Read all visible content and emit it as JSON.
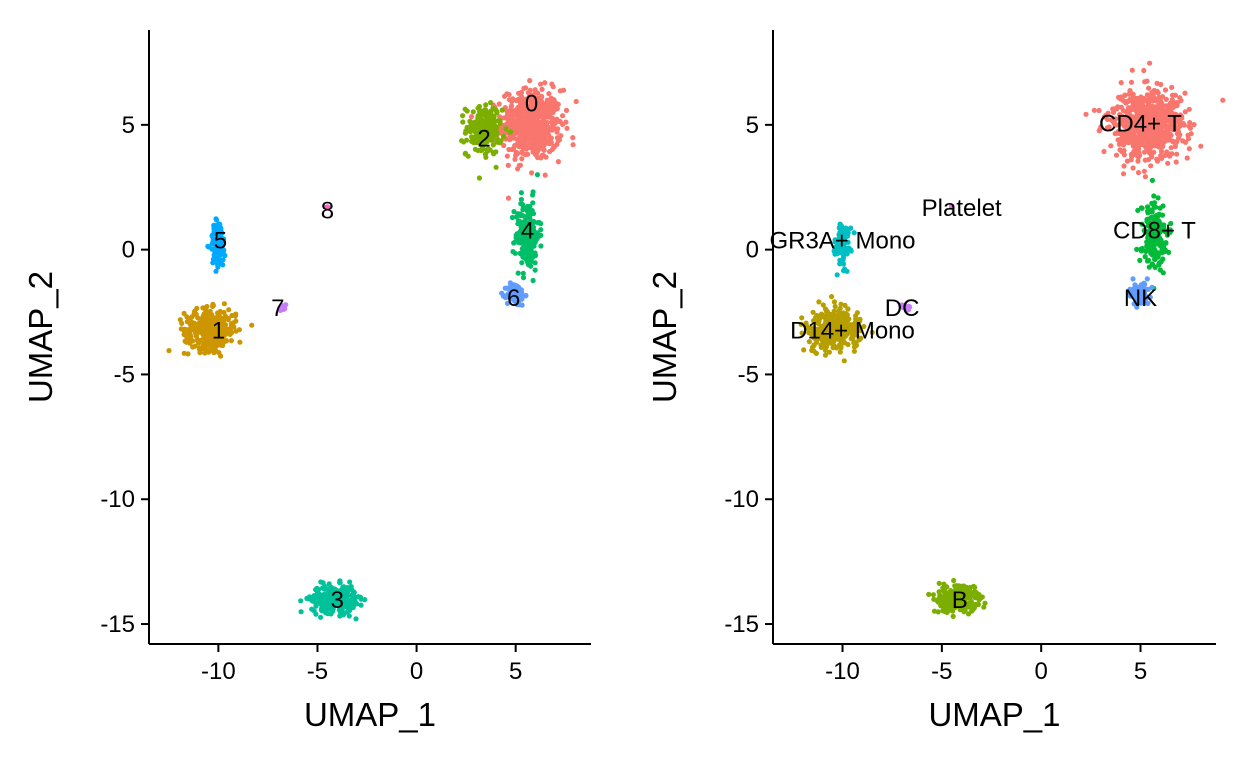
{
  "chart_data": [
    {
      "type": "scatter",
      "xlabel": "UMAP_1",
      "ylabel": "UMAP_2",
      "xlim": [
        -13.5,
        8.8
      ],
      "ylim": [
        -15.8,
        8.8
      ],
      "xticks": [
        -10,
        -5,
        0,
        5
      ],
      "yticks": [
        -15,
        -10,
        -5,
        0,
        5
      ],
      "grid": false,
      "legend": "none",
      "clusters": [
        {
          "label": "0",
          "color": "#F8766D",
          "center": [
            5.8,
            5.0
          ],
          "spread": [
            1.5,
            1.4
          ],
          "n": 560,
          "label_pos": [
            5.8,
            5.9
          ]
        },
        {
          "label": "2",
          "color": "#7CAE00",
          "center": [
            3.4,
            4.8
          ],
          "spread": [
            0.9,
            1.0
          ],
          "n": 200,
          "label_pos": [
            3.4,
            4.5
          ]
        },
        {
          "label": "4",
          "color": "#00BE67",
          "center": [
            5.6,
            0.6
          ],
          "spread": [
            0.6,
            1.4
          ],
          "n": 180,
          "label_pos": [
            5.6,
            0.8
          ]
        },
        {
          "label": "6",
          "color": "#619CFF",
          "center": [
            5.0,
            -1.8
          ],
          "spread": [
            0.45,
            0.45
          ],
          "n": 80,
          "label_pos": [
            4.9,
            -1.9
          ]
        },
        {
          "label": "5",
          "color": "#00A9FF",
          "center": [
            -10.0,
            0.2
          ],
          "spread": [
            0.4,
            1.0
          ],
          "n": 90,
          "label_pos": [
            -9.9,
            0.4
          ]
        },
        {
          "label": "1",
          "color": "#CD9600",
          "center": [
            -10.4,
            -3.2
          ],
          "spread": [
            1.3,
            0.8
          ],
          "n": 340,
          "label_pos": [
            -10.0,
            -3.2
          ]
        },
        {
          "label": "7",
          "color": "#C77CFF",
          "center": [
            -6.8,
            -2.3
          ],
          "spread": [
            0.25,
            0.15
          ],
          "n": 14,
          "label_pos": [
            -7.0,
            -2.3
          ]
        },
        {
          "label": "8",
          "color": "#FF61CC",
          "center": [
            -4.5,
            1.7
          ],
          "spread": [
            0.05,
            0.05
          ],
          "n": 3,
          "label_pos": [
            -4.5,
            1.6
          ]
        },
        {
          "label": "3",
          "color": "#00C19A",
          "center": [
            -4.2,
            -14.0
          ],
          "spread": [
            1.1,
            0.55
          ],
          "n": 280,
          "label_pos": [
            -4.0,
            -14.0
          ]
        }
      ]
    },
    {
      "type": "scatter",
      "xlabel": "UMAP_1",
      "ylabel": "UMAP_2",
      "xlim": [
        -13.5,
        8.8
      ],
      "ylim": [
        -15.8,
        8.8
      ],
      "xticks": [
        -10,
        -5,
        0,
        5
      ],
      "yticks": [
        -15,
        -10,
        -5,
        0,
        5
      ],
      "grid": false,
      "legend": "none",
      "clusters": [
        {
          "label": "CD4+ T",
          "color": "#F8766D",
          "center": [
            5.3,
            5.0
          ],
          "spread": [
            1.9,
            1.4
          ],
          "n": 700,
          "label_pos": [
            5.0,
            5.1
          ]
        },
        {
          "label": "CD8+ T",
          "color": "#00BA38",
          "center": [
            5.7,
            0.6
          ],
          "spread": [
            0.6,
            1.4
          ],
          "n": 180,
          "label_pos": [
            5.7,
            0.8
          ]
        },
        {
          "label": "NK",
          "color": "#619CFF",
          "center": [
            5.0,
            -1.8
          ],
          "spread": [
            0.45,
            0.45
          ],
          "n": 80,
          "label_pos": [
            5.0,
            -1.9
          ]
        },
        {
          "label": "GR3A+ Mono",
          "color": "#00BFC4",
          "center": [
            -10.0,
            0.2
          ],
          "spread": [
            0.4,
            1.0
          ],
          "n": 90,
          "label_pos": [
            -10.0,
            0.4
          ]
        },
        {
          "label": "D14+ Mono",
          "color": "#B79F00",
          "center": [
            -10.4,
            -3.2
          ],
          "spread": [
            1.3,
            0.8
          ],
          "n": 340,
          "label_pos": [
            -9.5,
            -3.2
          ]
        },
        {
          "label": "DC",
          "color": "#C77CFF",
          "center": [
            -6.8,
            -2.3
          ],
          "spread": [
            0.25,
            0.15
          ],
          "n": 14,
          "label_pos": [
            -7.0,
            -2.3
          ]
        },
        {
          "label": "Platelet",
          "color": "#F564E3",
          "center": [
            -4.5,
            1.7
          ],
          "spread": [
            0.05,
            0.05
          ],
          "n": 3,
          "label_pos": [
            -4.0,
            1.7
          ]
        },
        {
          "label": "B",
          "color": "#7CAE00",
          "center": [
            -4.2,
            -14.0
          ],
          "spread": [
            1.1,
            0.55
          ],
          "n": 280,
          "label_pos": [
            -4.1,
            -14.0
          ]
        }
      ]
    }
  ]
}
